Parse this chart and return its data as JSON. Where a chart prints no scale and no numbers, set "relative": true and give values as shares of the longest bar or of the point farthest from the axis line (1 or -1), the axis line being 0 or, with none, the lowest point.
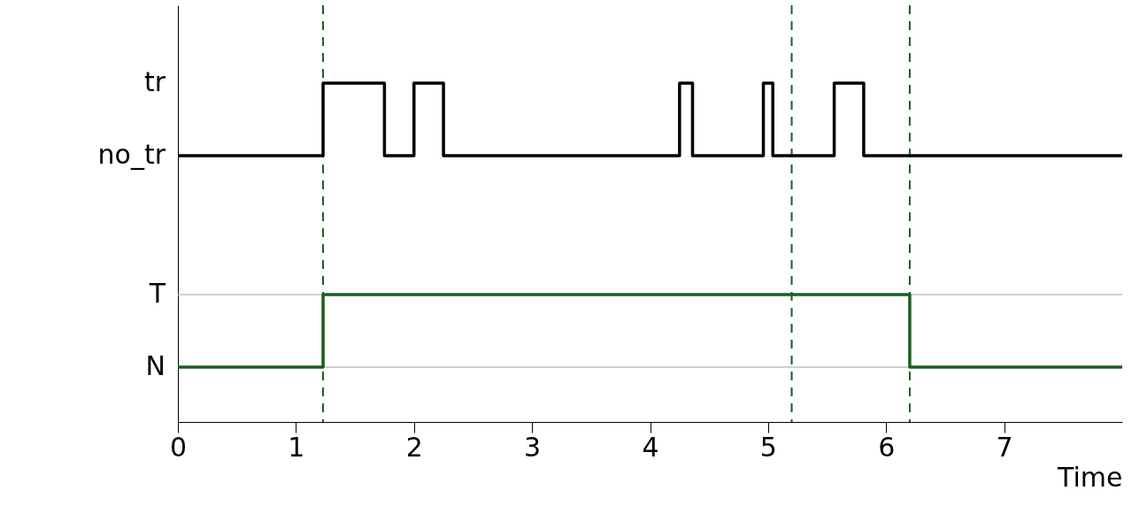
{
  "chart_data": {
    "type": "step",
    "xlabel": "Time",
    "relative": true,
    "xlim": [
      0,
      8
    ],
    "xticks": [
      0,
      1,
      2,
      3,
      4,
      5,
      6,
      7
    ],
    "series": [
      {
        "color": "#000000",
        "x": [
          0,
          1.23,
          1.75,
          2.0,
          2.25,
          4.25,
          4.36,
          4.96,
          5.04,
          5.56,
          5.81,
          8
        ],
        "values": [
          0.786,
          1,
          0.786,
          1,
          0.786,
          1,
          0.786,
          1,
          0.786,
          1,
          0.786,
          0.786
        ]
      },
      {
        "color": "#1b5e20",
        "x": [
          0,
          1.23,
          6.2,
          8
        ],
        "values": [
          0.162,
          0.376,
          0.162,
          0.162
        ]
      }
    ],
    "annotations": [
      "tr",
      "no_tr",
      "T",
      "N"
    ],
    "ref_lines": [
      {
        "axis": "y",
        "value": 0.376,
        "color": "#c0c0c0"
      },
      {
        "axis": "y",
        "value": 0.162,
        "color": "#c0c0c0"
      },
      {
        "axis": "x",
        "value": 1.23,
        "color": "#1b5e20",
        "line_style": "dashed"
      },
      {
        "axis": "x",
        "value": 5.2,
        "color": "#1b5e20",
        "line_style": "dashed"
      },
      {
        "axis": "x",
        "value": 6.2,
        "color": "#1b5e20",
        "line_style": "dashed"
      }
    ]
  }
}
